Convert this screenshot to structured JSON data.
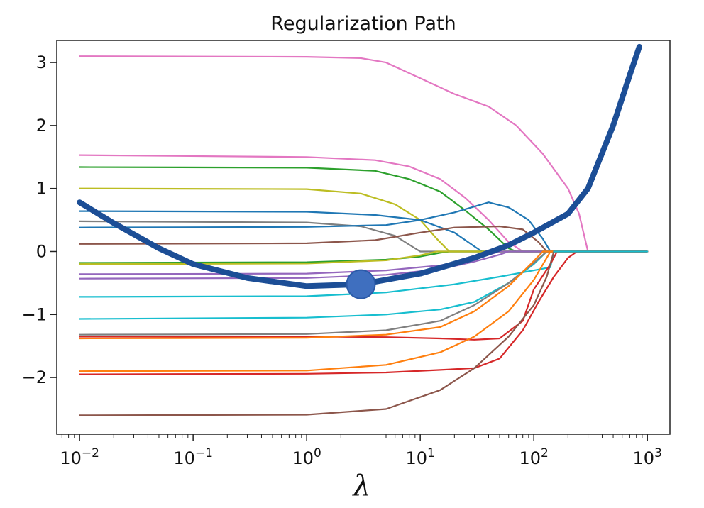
{
  "chart_data": {
    "type": "line",
    "title": "Regularization Path",
    "xlabel": "λ",
    "ylabel": "",
    "x_scale": "log",
    "xlim": [
      0.0063,
      1580
    ],
    "ylim": [
      -2.9,
      3.35
    ],
    "grid": false,
    "legend": "none",
    "x_ticks": [
      {
        "value": 0.01,
        "base": "10",
        "exp": "−2"
      },
      {
        "value": 0.1,
        "base": "10",
        "exp": "−1"
      },
      {
        "value": 1,
        "base": "10",
        "exp": "0"
      },
      {
        "value": 10,
        "base": "10",
        "exp": "1"
      },
      {
        "value": 100,
        "base": "10",
        "exp": "2"
      },
      {
        "value": 1000,
        "base": "10",
        "exp": "3"
      }
    ],
    "y_ticks": [
      {
        "value": 3,
        "label": "3"
      },
      {
        "value": 2,
        "label": "2"
      },
      {
        "value": 1,
        "label": "1"
      },
      {
        "value": 0,
        "label": "0"
      },
      {
        "value": -1,
        "label": "−1"
      },
      {
        "value": -2,
        "label": "−2"
      }
    ],
    "series": [
      {
        "color": "#e377c2",
        "points": [
          [
            0.01,
            3.1
          ],
          [
            1,
            3.09
          ],
          [
            3,
            3.07
          ],
          [
            5,
            3.0
          ],
          [
            10,
            2.75
          ],
          [
            20,
            2.5
          ],
          [
            40,
            2.3
          ],
          [
            70,
            2.0
          ],
          [
            120,
            1.55
          ],
          [
            200,
            1.0
          ],
          [
            250,
            0.6
          ],
          [
            300,
            0.0
          ],
          [
            1000,
            0.0
          ]
        ]
      },
      {
        "color": "#e377c2",
        "points": [
          [
            0.01,
            1.53
          ],
          [
            1,
            1.5
          ],
          [
            4,
            1.45
          ],
          [
            8,
            1.35
          ],
          [
            15,
            1.15
          ],
          [
            25,
            0.85
          ],
          [
            40,
            0.5
          ],
          [
            60,
            0.15
          ],
          [
            80,
            0.0
          ],
          [
            1000,
            0.0
          ]
        ]
      },
      {
        "color": "#2ca02c",
        "points": [
          [
            0.01,
            1.34
          ],
          [
            1,
            1.33
          ],
          [
            4,
            1.28
          ],
          [
            8,
            1.15
          ],
          [
            15,
            0.95
          ],
          [
            25,
            0.65
          ],
          [
            40,
            0.35
          ],
          [
            60,
            0.05
          ],
          [
            70,
            0.0
          ],
          [
            1000,
            0.0
          ]
        ]
      },
      {
        "color": "#bcbd22",
        "points": [
          [
            0.01,
            1.0
          ],
          [
            1,
            0.99
          ],
          [
            3,
            0.92
          ],
          [
            6,
            0.75
          ],
          [
            10,
            0.5
          ],
          [
            14,
            0.2
          ],
          [
            18,
            0.0
          ],
          [
            1000,
            0.0
          ]
        ]
      },
      {
        "color": "#1f77b4",
        "points": [
          [
            0.01,
            0.64
          ],
          [
            1,
            0.63
          ],
          [
            4,
            0.58
          ],
          [
            10,
            0.5
          ],
          [
            20,
            0.3
          ],
          [
            30,
            0.08
          ],
          [
            35,
            0.0
          ],
          [
            1000,
            0.0
          ]
        ]
      },
      {
        "color": "#7f7f7f",
        "points": [
          [
            0.01,
            0.48
          ],
          [
            1,
            0.46
          ],
          [
            3,
            0.4
          ],
          [
            6,
            0.25
          ],
          [
            9,
            0.05
          ],
          [
            10,
            0.0
          ],
          [
            1000,
            0.0
          ]
        ]
      },
      {
        "color": "#1f77b4",
        "points": [
          [
            0.01,
            0.38
          ],
          [
            1,
            0.39
          ],
          [
            5,
            0.42
          ],
          [
            10,
            0.5
          ],
          [
            20,
            0.62
          ],
          [
            40,
            0.78
          ],
          [
            60,
            0.7
          ],
          [
            90,
            0.5
          ],
          [
            120,
            0.2
          ],
          [
            140,
            0.0
          ],
          [
            1000,
            0.0
          ]
        ]
      },
      {
        "color": "#8c564b",
        "points": [
          [
            0.01,
            0.12
          ],
          [
            1,
            0.13
          ],
          [
            4,
            0.18
          ],
          [
            10,
            0.3
          ],
          [
            20,
            0.38
          ],
          [
            50,
            0.4
          ],
          [
            80,
            0.35
          ],
          [
            110,
            0.15
          ],
          [
            130,
            0.0
          ],
          [
            1000,
            0.0
          ]
        ]
      },
      {
        "color": "#2ca02c",
        "points": [
          [
            0.01,
            -0.18
          ],
          [
            1,
            -0.17
          ],
          [
            5,
            -0.13
          ],
          [
            10,
            -0.08
          ],
          [
            15,
            -0.02
          ],
          [
            18,
            0.0
          ],
          [
            1000,
            0.0
          ]
        ]
      },
      {
        "color": "#bcbd22",
        "points": [
          [
            0.01,
            -0.2
          ],
          [
            1,
            -0.19
          ],
          [
            5,
            -0.14
          ],
          [
            10,
            -0.06
          ],
          [
            14,
            0.0
          ],
          [
            1000,
            0.0
          ]
        ]
      },
      {
        "color": "#9467bd",
        "points": [
          [
            0.01,
            -0.36
          ],
          [
            1,
            -0.35
          ],
          [
            5,
            -0.3
          ],
          [
            15,
            -0.22
          ],
          [
            30,
            -0.12
          ],
          [
            50,
            0.0
          ],
          [
            1000,
            0.0
          ]
        ]
      },
      {
        "color": "#9467bd",
        "points": [
          [
            0.01,
            -0.43
          ],
          [
            1,
            -0.42
          ],
          [
            5,
            -0.37
          ],
          [
            15,
            -0.28
          ],
          [
            30,
            -0.16
          ],
          [
            50,
            -0.05
          ],
          [
            60,
            0.0
          ],
          [
            1000,
            0.0
          ]
        ]
      },
      {
        "color": "#17becf",
        "points": [
          [
            0.01,
            -0.72
          ],
          [
            1,
            -0.71
          ],
          [
            5,
            -0.65
          ],
          [
            20,
            -0.52
          ],
          [
            50,
            -0.4
          ],
          [
            100,
            -0.3
          ],
          [
            140,
            -0.25
          ],
          [
            150,
            0.0
          ],
          [
            1000,
            0.0
          ]
        ]
      },
      {
        "color": "#17becf",
        "points": [
          [
            0.01,
            -1.07
          ],
          [
            1,
            -1.05
          ],
          [
            5,
            -1.0
          ],
          [
            15,
            -0.92
          ],
          [
            30,
            -0.8
          ],
          [
            60,
            -0.5
          ],
          [
            100,
            -0.2
          ],
          [
            130,
            0.0
          ],
          [
            1000,
            0.0
          ]
        ]
      },
      {
        "color": "#7f7f7f",
        "points": [
          [
            0.01,
            -1.32
          ],
          [
            1,
            -1.31
          ],
          [
            5,
            -1.25
          ],
          [
            15,
            -1.1
          ],
          [
            30,
            -0.85
          ],
          [
            60,
            -0.5
          ],
          [
            100,
            -0.18
          ],
          [
            130,
            0.0
          ],
          [
            1000,
            0.0
          ]
        ]
      },
      {
        "color": "#d62728",
        "points": [
          [
            0.01,
            -1.35
          ],
          [
            1,
            -1.35
          ],
          [
            5,
            -1.36
          ],
          [
            15,
            -1.38
          ],
          [
            30,
            -1.4
          ],
          [
            50,
            -1.38
          ],
          [
            80,
            -1.1
          ],
          [
            100,
            -0.6
          ],
          [
            140,
            -0.2
          ],
          [
            160,
            0.0
          ],
          [
            1000,
            0.0
          ]
        ]
      },
      {
        "color": "#ff7f0e",
        "points": [
          [
            0.01,
            -1.38
          ],
          [
            1,
            -1.37
          ],
          [
            5,
            -1.32
          ],
          [
            15,
            -1.2
          ],
          [
            30,
            -0.95
          ],
          [
            60,
            -0.55
          ],
          [
            100,
            -0.15
          ],
          [
            120,
            0.0
          ],
          [
            1000,
            0.0
          ]
        ]
      },
      {
        "color": "#ff7f0e",
        "points": [
          [
            0.01,
            -1.9
          ],
          [
            1,
            -1.89
          ],
          [
            5,
            -1.8
          ],
          [
            15,
            -1.6
          ],
          [
            30,
            -1.35
          ],
          [
            60,
            -0.95
          ],
          [
            100,
            -0.45
          ],
          [
            130,
            -0.1
          ],
          [
            140,
            0.0
          ],
          [
            1000,
            0.0
          ]
        ]
      },
      {
        "color": "#d62728",
        "points": [
          [
            0.01,
            -1.95
          ],
          [
            1,
            -1.94
          ],
          [
            5,
            -1.92
          ],
          [
            15,
            -1.88
          ],
          [
            30,
            -1.85
          ],
          [
            50,
            -1.7
          ],
          [
            80,
            -1.25
          ],
          [
            110,
            -0.8
          ],
          [
            150,
            -0.4
          ],
          [
            200,
            -0.1
          ],
          [
            240,
            0.0
          ],
          [
            1000,
            0.0
          ]
        ]
      },
      {
        "color": "#8c564b",
        "points": [
          [
            0.01,
            -2.6
          ],
          [
            1,
            -2.59
          ],
          [
            5,
            -2.5
          ],
          [
            15,
            -2.2
          ],
          [
            30,
            -1.85
          ],
          [
            60,
            -1.35
          ],
          [
            100,
            -0.85
          ],
          [
            130,
            -0.4
          ],
          [
            150,
            0.0
          ],
          [
            1000,
            0.0
          ]
        ]
      },
      {
        "color": "#17becf",
        "points": [
          [
            150,
            0.0
          ],
          [
            1000,
            0.0
          ]
        ]
      }
    ],
    "highlight": {
      "color": "#1c4e96",
      "points": [
        [
          0.01,
          0.78
        ],
        [
          0.02,
          0.45
        ],
        [
          0.05,
          0.05
        ],
        [
          0.1,
          -0.2
        ],
        [
          0.3,
          -0.42
        ],
        [
          1,
          -0.55
        ],
        [
          3,
          -0.52
        ],
        [
          10,
          -0.35
        ],
        [
          30,
          -0.1
        ],
        [
          60,
          0.1
        ],
        [
          100,
          0.3
        ],
        [
          200,
          0.6
        ],
        [
          300,
          1.0
        ],
        [
          500,
          2.0
        ],
        [
          700,
          2.8
        ],
        [
          850,
          3.25
        ]
      ],
      "marker": {
        "x": 3,
        "y": -0.52,
        "color": "#3f6fbf"
      }
    }
  }
}
